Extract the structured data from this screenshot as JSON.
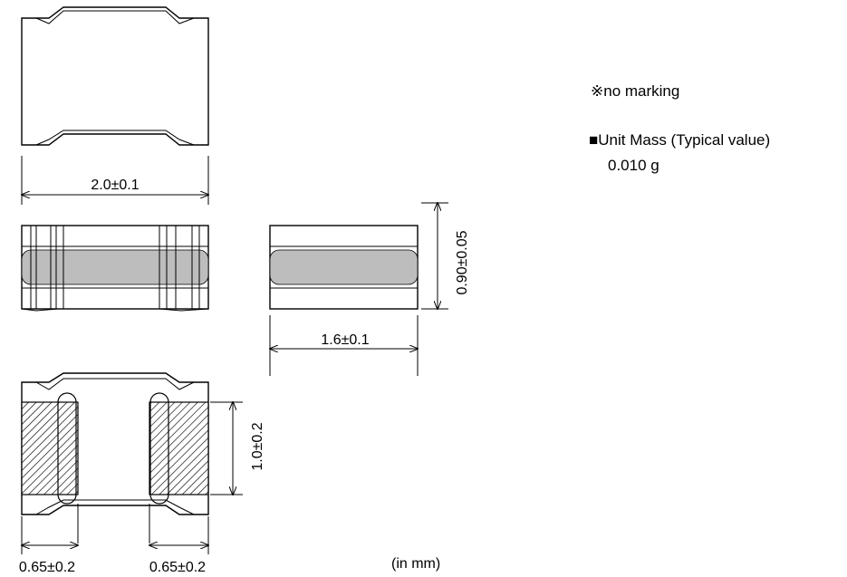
{
  "dimensions": {
    "top_width": "2.0±0.1",
    "side_height": "0.90±0.05",
    "side_width": "1.6±0.1",
    "pad_height": "1.0±0.2",
    "pad_left_width": "0.65±0.2",
    "pad_right_width": "0.65±0.2"
  },
  "notes": {
    "marking": "※no marking",
    "unit_mass_label": "■Unit Mass (Typical value)",
    "unit_mass_value": "0.010 g",
    "units": "(in mm)"
  },
  "colors": {
    "line": "#000000",
    "core": "#bdbdbd",
    "background": "#ffffff"
  }
}
